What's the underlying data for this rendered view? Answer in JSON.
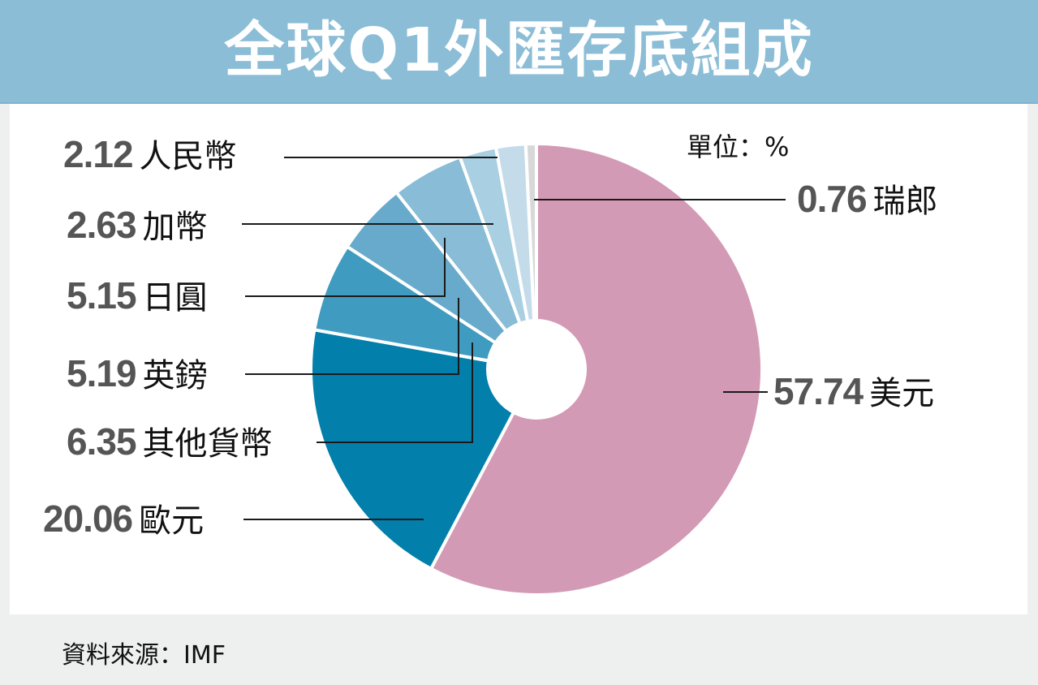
{
  "header": {
    "title": "全球Q1外匯存底組成"
  },
  "unit_label": "單位：%",
  "source_label": "資料來源：IMF",
  "labels": [
    {
      "value": "2.12",
      "name": "人民幣"
    },
    {
      "value": "2.63",
      "name": "加幣"
    },
    {
      "value": "5.15",
      "name": "日圓"
    },
    {
      "value": "5.19",
      "name": "英鎊"
    },
    {
      "value": "6.35",
      "name": "其他貨幣"
    },
    {
      "value": "20.06",
      "name": "歐元"
    },
    {
      "value": "0.76",
      "name": "瑞郎"
    },
    {
      "value": "57.74",
      "name": "美元"
    }
  ],
  "colors": {
    "header_bg": "#8bbdd6",
    "usd": "#d39ab5",
    "eur": "#027faa",
    "other": "#3f9bc0",
    "gbp": "#67aacb",
    "jpy": "#89bcd6",
    "cad": "#a9cfe2",
    "cny": "#c4dcea",
    "chf": "#d8d8d8"
  },
  "chart_data": {
    "type": "pie",
    "title": "全球Q1外匯存底組成",
    "unit": "%",
    "donut": true,
    "start_angle": "12 o'clock, clockwise",
    "categories": [
      "美元",
      "歐元",
      "其他貨幣",
      "英鎊",
      "日圓",
      "加幣",
      "人民幣",
      "瑞郎"
    ],
    "values": [
      57.74,
      20.06,
      6.35,
      5.19,
      5.15,
      2.63,
      2.12,
      0.76
    ],
    "colors": [
      "#d39ab5",
      "#027faa",
      "#3f9bc0",
      "#67aacb",
      "#89bcd6",
      "#a9cfe2",
      "#c4dcea",
      "#d8d8d8"
    ],
    "source": "IMF"
  }
}
